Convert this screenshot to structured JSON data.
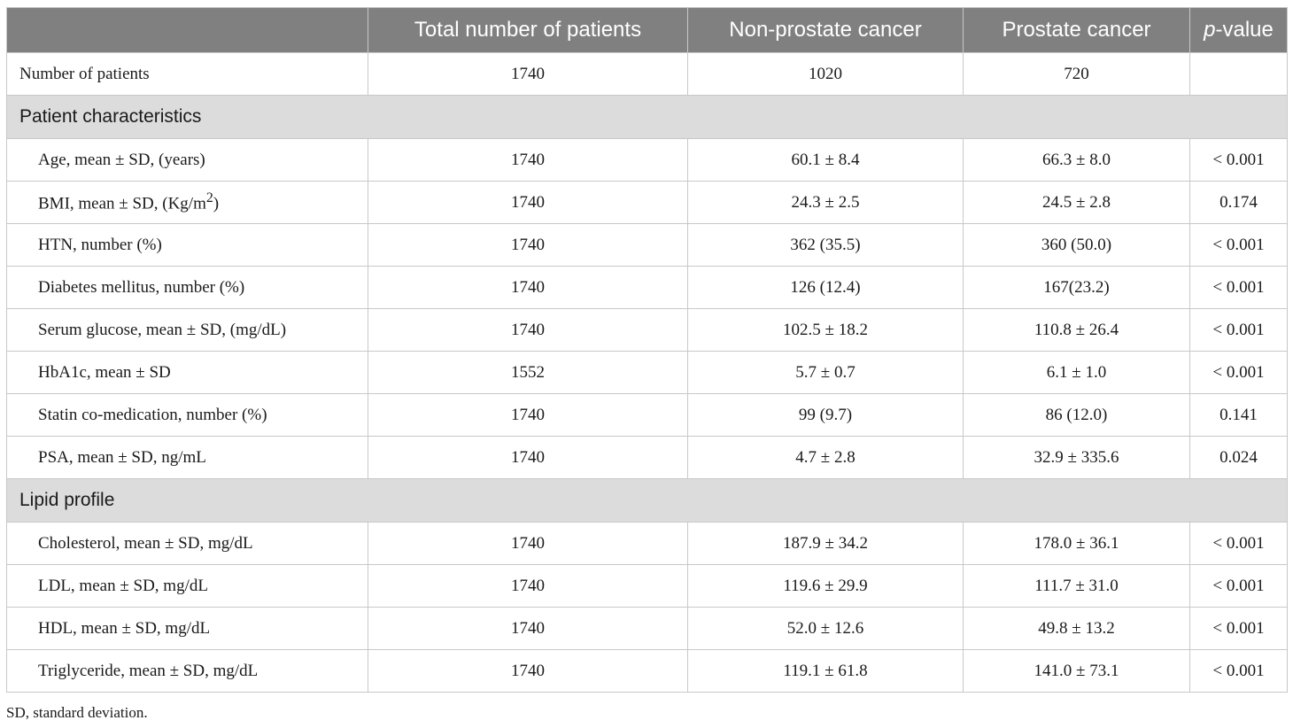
{
  "table": {
    "headers": {
      "label": "",
      "total": "Total number of patients",
      "non_prostate": "Non-prostate cancer",
      "prostate": "Prostate cancer",
      "pvalue_italic": "p",
      "pvalue_rest": "-value"
    },
    "number_row": {
      "label": "Number of patients",
      "total": "1740",
      "non_prostate": "1020",
      "prostate": "720",
      "p": ""
    },
    "section1": "Patient characteristics",
    "rows1": [
      {
        "label": "Age, mean ± SD, (years)",
        "total": "1740",
        "non_prostate": "60.1 ± 8.4",
        "prostate": "66.3 ± 8.0",
        "p": "< 0.001"
      },
      {
        "label": "BMI, mean ± SD, (Kg/m",
        "sup": "2",
        "label_end": ")",
        "total": "1740",
        "non_prostate": "24.3 ± 2.5",
        "prostate": "24.5 ± 2.8",
        "p": "0.174"
      },
      {
        "label": "HTN, number (%)",
        "total": "1740",
        "non_prostate": "362 (35.5)",
        "prostate": "360 (50.0)",
        "p": "< 0.001"
      },
      {
        "label": "Diabetes mellitus, number (%)",
        "total": "1740",
        "non_prostate": "126 (12.4)",
        "prostate": "167(23.2)",
        "p": "< 0.001"
      },
      {
        "label": "Serum glucose, mean ± SD, (mg/dL)",
        "total": "1740",
        "non_prostate": "102.5 ± 18.2",
        "prostate": "110.8 ± 26.4",
        "p": "< 0.001"
      },
      {
        "label": "HbA1c, mean ± SD",
        "total": "1552",
        "non_prostate": "5.7 ± 0.7",
        "prostate": "6.1 ± 1.0",
        "p": "< 0.001"
      },
      {
        "label": "Statin co-medication, number (%)",
        "total": "1740",
        "non_prostate": "99 (9.7)",
        "prostate": "86 (12.0)",
        "p": "0.141"
      },
      {
        "label": "PSA, mean ± SD, ng/mL",
        "total": "1740",
        "non_prostate": "4.7 ± 2.8",
        "prostate": "32.9 ± 335.6",
        "p": "0.024"
      }
    ],
    "section2": "Lipid profile",
    "rows2": [
      {
        "label": "Cholesterol, mean ± SD, mg/dL",
        "total": "1740",
        "non_prostate": "187.9 ± 34.2",
        "prostate": "178.0 ± 36.1",
        "p": "< 0.001"
      },
      {
        "label": "LDL, mean ± SD, mg/dL",
        "total": "1740",
        "non_prostate": "119.6 ± 29.9",
        "prostate": "111.7 ± 31.0",
        "p": "< 0.001"
      },
      {
        "label": "HDL, mean ± SD, mg/dL",
        "total": "1740",
        "non_prostate": "52.0 ± 12.6",
        "prostate": "49.8 ± 13.2",
        "p": "< 0.001"
      },
      {
        "label": "Triglyceride, mean ± SD, mg/dL",
        "total": "1740",
        "non_prostate": "119.1 ± 61.8",
        "prostate": "141.0 ± 73.1",
        "p": "< 0.001"
      }
    ]
  },
  "footnote": "SD, standard deviation.",
  "colors": {
    "header_bg": "#808080",
    "section_bg": "#dcdcdc",
    "border": "#c8c8c8"
  }
}
